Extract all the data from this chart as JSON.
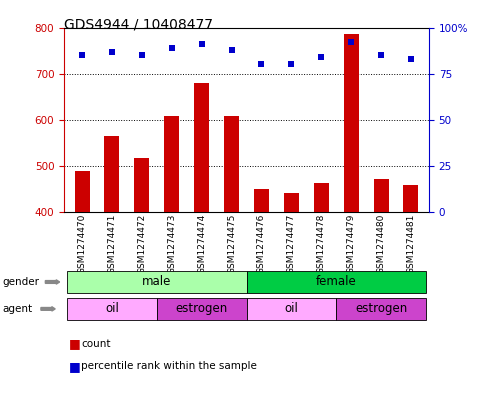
{
  "title": "GDS4944 / 10408477",
  "samples": [
    "GSM1274470",
    "GSM1274471",
    "GSM1274472",
    "GSM1274473",
    "GSM1274474",
    "GSM1274475",
    "GSM1274476",
    "GSM1274477",
    "GSM1274478",
    "GSM1274479",
    "GSM1274480",
    "GSM1274481"
  ],
  "counts": [
    490,
    565,
    518,
    608,
    680,
    608,
    450,
    442,
    463,
    785,
    472,
    458
  ],
  "percentile_ranks": [
    85,
    87,
    85,
    89,
    91,
    88,
    80,
    80,
    84,
    92,
    85,
    83
  ],
  "ylim_left": [
    400,
    800
  ],
  "ylim_right": [
    0,
    100
  ],
  "yticks_left": [
    400,
    500,
    600,
    700,
    800
  ],
  "yticks_right": [
    0,
    25,
    50,
    75,
    100
  ],
  "bar_color": "#CC0000",
  "dot_color": "#0000CC",
  "bar_width": 0.5,
  "gender_groups": [
    {
      "label": "male",
      "start": 0,
      "end": 6,
      "color": "#AAFFAA"
    },
    {
      "label": "female",
      "start": 6,
      "end": 12,
      "color": "#00CC44"
    }
  ],
  "agent_groups": [
    {
      "label": "oil",
      "start": 0,
      "end": 3,
      "color": "#FFAAFF"
    },
    {
      "label": "estrogen",
      "start": 3,
      "end": 6,
      "color": "#CC44CC"
    },
    {
      "label": "oil",
      "start": 6,
      "end": 9,
      "color": "#FFAAFF"
    },
    {
      "label": "estrogen",
      "start": 9,
      "end": 12,
      "color": "#CC44CC"
    }
  ],
  "tick_color_left": "#CC0000",
  "tick_color_right": "#0000CC",
  "background_color": "#FFFFFF",
  "grid_color": "#000000",
  "border_color": "#000000"
}
